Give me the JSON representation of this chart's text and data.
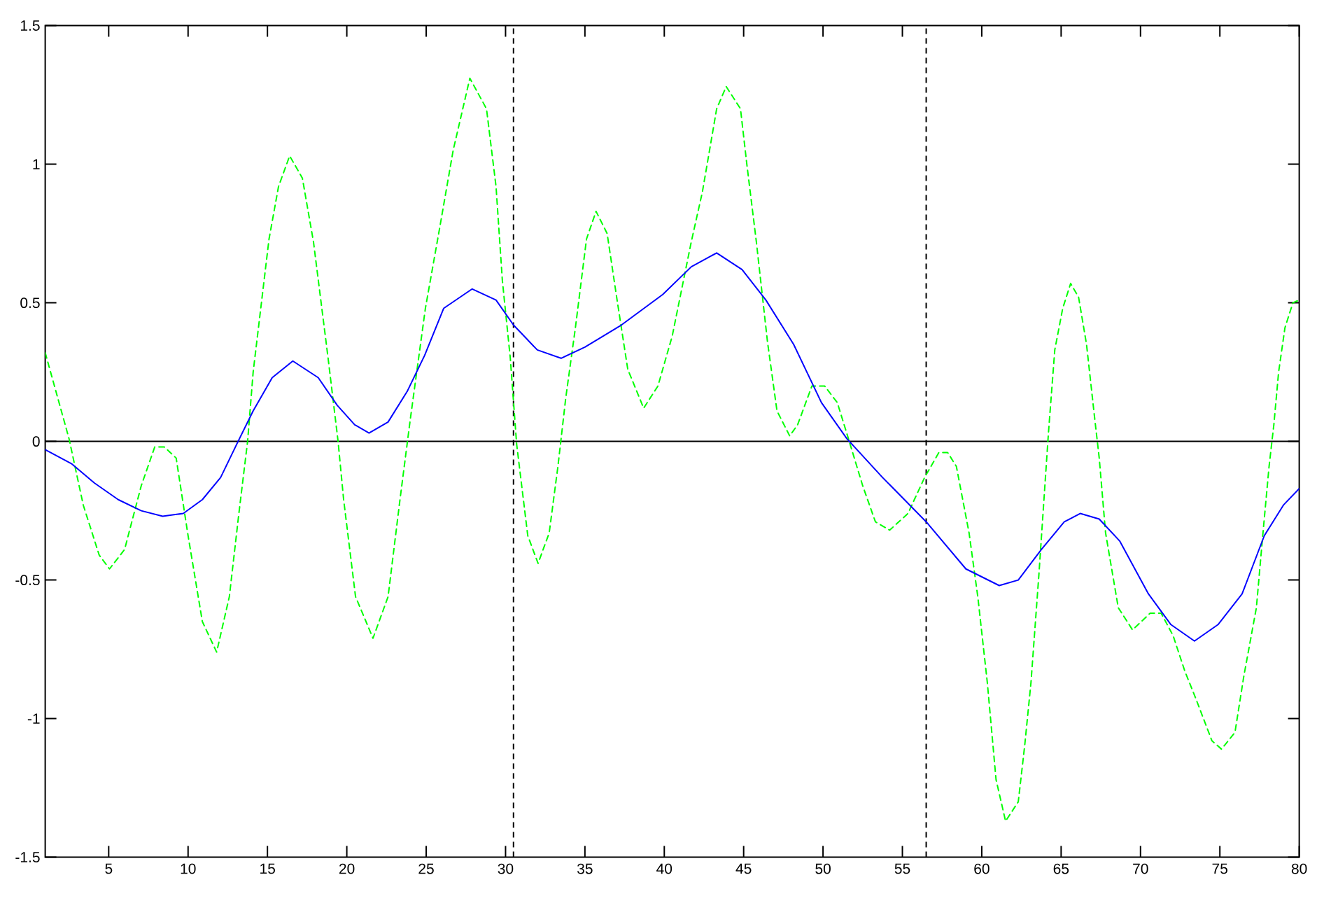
{
  "chart_data": {
    "type": "line",
    "xlim": [
      1,
      80
    ],
    "ylim": [
      -1.5,
      1.5
    ],
    "xticks": [
      5,
      10,
      15,
      20,
      25,
      30,
      35,
      40,
      45,
      50,
      55,
      60,
      65,
      70,
      75,
      80
    ],
    "yticks": [
      -1.5,
      -1,
      -0.5,
      0,
      0.5,
      1,
      1.5
    ],
    "marker": "none",
    "ref_lines": [
      {
        "axis": "y",
        "value": 0,
        "color": "#000000",
        "line_style": "solid"
      },
      {
        "axis": "x",
        "value": 30.5,
        "color": "#000000",
        "line_style": "dashed"
      },
      {
        "axis": "x",
        "value": 56.5,
        "color": "#000000",
        "line_style": "dashed"
      }
    ],
    "series": [
      {
        "color": "#00ff00",
        "line_style": "dashed",
        "x": [
          1,
          2.5,
          3.4,
          4.4,
          5.05,
          6.0,
          7.05,
          7.9,
          8.5,
          9.25,
          10.0,
          10.9,
          11.8,
          12.6,
          13.2,
          13.75,
          14.1,
          15.1,
          15.7,
          16.4,
          17.2,
          17.9,
          18.8,
          19.45,
          19.8,
          20.55,
          21.65,
          22.6,
          23.35,
          24.0,
          24.95,
          25.85,
          26.7,
          27.75,
          28.8,
          29.4,
          29.8,
          30.3,
          30.7,
          31.4,
          32.05,
          32.75,
          33.3,
          33.8,
          34.4,
          35.1,
          35.7,
          36.4,
          37.0,
          37.7,
          38.7,
          39.6,
          40.5,
          41.7,
          42.4,
          43.3,
          43.9,
          44.8,
          45.2,
          45.8,
          46.5,
          47.1,
          47.9,
          48.4,
          49.3,
          50.1,
          50.9,
          51.6,
          52.5,
          53.3,
          54.2,
          55.35,
          56.4,
          57.3,
          57.85,
          58.4,
          59.2,
          59.75,
          60.35,
          60.9,
          61.5,
          62.3,
          62.7,
          63.1,
          63.6,
          64.2,
          64.6,
          65.1,
          65.6,
          66.1,
          66.6,
          67.1,
          67.4,
          67.8,
          68.6,
          69.5,
          70.6,
          71.3,
          72.05,
          72.8,
          73.5,
          74.5,
          75.1,
          75.95,
          76.5,
          77.3,
          77.7,
          78.1,
          78.4,
          78.7,
          79.1,
          79.6,
          80
        ],
        "values": [
          0.32,
          0.01,
          -0.23,
          -0.41,
          -0.46,
          -0.39,
          -0.16,
          -0.02,
          -0.02,
          -0.06,
          -0.34,
          -0.65,
          -0.76,
          -0.56,
          -0.26,
          0,
          0.25,
          0.73,
          0.92,
          1.03,
          0.95,
          0.72,
          0.31,
          0,
          -0.21,
          -0.56,
          -0.71,
          -0.56,
          -0.21,
          0.08,
          0.48,
          0.77,
          1.05,
          1.31,
          1.2,
          0.92,
          0.58,
          0.3,
          -0.01,
          -0.34,
          -0.44,
          -0.33,
          -0.09,
          0.16,
          0.41,
          0.73,
          0.83,
          0.75,
          0.52,
          0.26,
          0.12,
          0.2,
          0.38,
          0.72,
          0.9,
          1.2,
          1.28,
          1.2,
          1.0,
          0.72,
          0.36,
          0.11,
          0.02,
          0.06,
          0.2,
          0.2,
          0.14,
          0.01,
          -0.16,
          -0.29,
          -0.32,
          -0.26,
          -0.13,
          -0.04,
          -0.04,
          -0.09,
          -0.33,
          -0.56,
          -0.87,
          -1.22,
          -1.37,
          -1.3,
          -1.1,
          -0.87,
          -0.48,
          0.03,
          0.33,
          0.48,
          0.57,
          0.52,
          0.35,
          0.09,
          -0.06,
          -0.33,
          -0.6,
          -0.68,
          -0.62,
          -0.62,
          -0.7,
          -0.83,
          -0.93,
          -1.08,
          -1.11,
          -1.05,
          -0.85,
          -0.6,
          -0.34,
          -0.09,
          0.06,
          0.25,
          0.41,
          0.5,
          0.51
        ]
      },
      {
        "color": "#0000ff",
        "line_style": "solid",
        "x": [
          1,
          2.65,
          4.1,
          5.6,
          7.05,
          8.4,
          9.7,
          10.9,
          12.05,
          13.15,
          14.1,
          15.3,
          16.6,
          18.2,
          19.4,
          20.5,
          21.4,
          22.6,
          23.8,
          24.9,
          26.1,
          27.9,
          29.4,
          30.5,
          32,
          33.5,
          35,
          37.3,
          39.9,
          41.7,
          43.3,
          44.9,
          46.4,
          48.15,
          49.9,
          51.5,
          53.75,
          56.5,
          59,
          61.1,
          62.3,
          63.75,
          65.2,
          66.2,
          67.4,
          68.7,
          70.5,
          71.9,
          73.4,
          74.9,
          76.4,
          77.8,
          79,
          80
        ],
        "values": [
          -0.03,
          -0.08,
          -0.15,
          -0.21,
          -0.25,
          -0.27,
          -0.26,
          -0.21,
          -0.13,
          0,
          0.11,
          0.23,
          0.29,
          0.23,
          0.13,
          0.06,
          0.03,
          0.07,
          0.18,
          0.31,
          0.48,
          0.55,
          0.51,
          0.42,
          0.33,
          0.3,
          0.34,
          0.42,
          0.53,
          0.63,
          0.68,
          0.62,
          0.51,
          0.35,
          0.14,
          0.01,
          -0.13,
          -0.29,
          -0.46,
          -0.52,
          -0.5,
          -0.39,
          -0.29,
          -0.26,
          -0.28,
          -0.36,
          -0.55,
          -0.66,
          -0.72,
          -0.66,
          -0.55,
          -0.34,
          -0.23,
          -0.17
        ]
      }
    ]
  }
}
